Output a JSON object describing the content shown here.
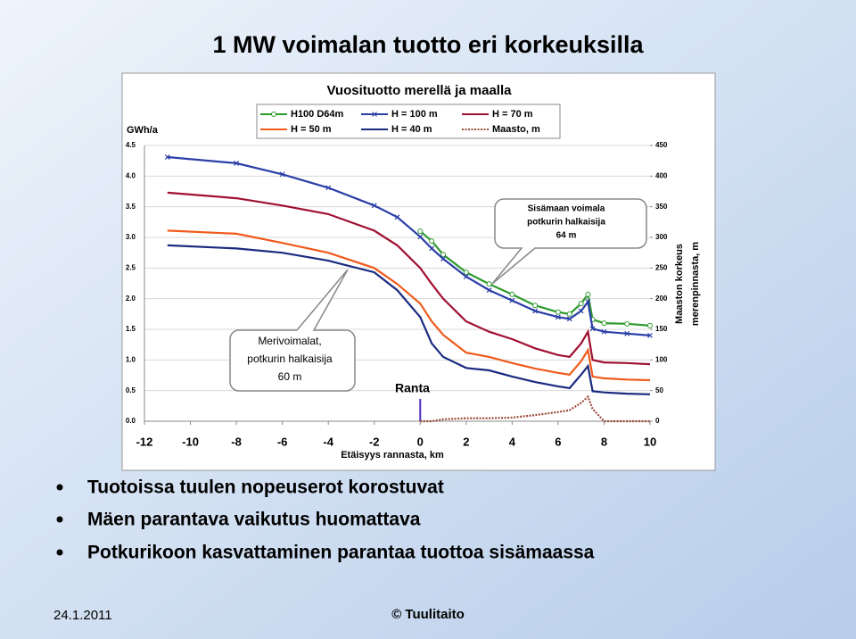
{
  "slide": {
    "title": "1 MW voimalan tuotto eri korkeuksilla",
    "bullets": [
      "Tuotoissa tuulen nopeuserot korostuvat",
      "Mäen parantava vaikutus huomattava",
      "Potkurikoon kasvattaminen parantaa tuottoa sisämaassa"
    ],
    "footer_date": "24.1.2011",
    "footer_copyright": "© Tuulitaito"
  },
  "chart_data": {
    "type": "line",
    "title": "Vuosituotto merellä ja maalla",
    "ylabel": "GWh/a",
    "xlabel": "Etäisyys rannasta, km",
    "y2label": [
      "Maaston korkeus",
      "merenpinnasta, m"
    ],
    "annotations": {
      "inland": [
        "Sisämaan voimala",
        "potkurin halkaisija",
        "64 m"
      ],
      "sea": [
        "Merivoimalat,",
        "potkurin halkaisija",
        "60 m"
      ],
      "shore": "Ranta"
    },
    "x": [
      -11,
      -8,
      -6,
      -4,
      -2,
      -1,
      0,
      0.5,
      1,
      2,
      3,
      4,
      5,
      6,
      6.5,
      7,
      7.3,
      7.5,
      8,
      9,
      10
    ],
    "xlim": [
      -12,
      10
    ],
    "xticks": [
      -12,
      -10,
      -8,
      -6,
      -4,
      -2,
      0,
      2,
      4,
      6,
      8,
      10
    ],
    "ylim": [
      0,
      4.5
    ],
    "yticks": [
      {
        "value": 0,
        "label": "0.0"
      },
      {
        "value": 0.5,
        "label": "0.5"
      },
      {
        "value": 1,
        "label": "1.0"
      },
      {
        "value": 1.5,
        "label": "1.5"
      },
      {
        "value": 2,
        "label": "2.0"
      },
      {
        "value": 2.5,
        "label": "2.5"
      },
      {
        "value": 3,
        "label": "3.0"
      },
      {
        "value": 3.5,
        "label": "3.5"
      },
      {
        "value": 4,
        "label": "4.0"
      },
      {
        "value": 4.5,
        "label": "4.5"
      }
    ],
    "y2lim": [
      0,
      450
    ],
    "y2ticks": [
      0,
      50,
      100,
      150,
      200,
      250,
      300,
      350,
      400,
      450
    ],
    "grid": true,
    "series": [
      {
        "name": "H100 D64m",
        "color": "#2e9a2e",
        "marker": "circle",
        "values": [
          null,
          null,
          null,
          null,
          null,
          null,
          3.1,
          2.94,
          2.72,
          2.43,
          2.24,
          2.07,
          1.89,
          1.78,
          1.75,
          1.92,
          2.07,
          1.66,
          1.6,
          1.59,
          1.56
        ]
      },
      {
        "name": "H = 100 m",
        "color": "#2b3fa8",
        "marker": "x",
        "values": [
          4.31,
          4.21,
          4.03,
          3.81,
          3.52,
          3.33,
          3.01,
          2.82,
          2.65,
          2.36,
          2.14,
          1.97,
          1.8,
          1.7,
          1.67,
          1.8,
          1.95,
          1.51,
          1.46,
          1.43,
          1.4
        ]
      },
      {
        "name": "H = 70 m",
        "color": "#a01030",
        "values": [
          3.73,
          3.64,
          3.52,
          3.38,
          3.11,
          2.87,
          2.5,
          2.24,
          2.0,
          1.63,
          1.46,
          1.34,
          1.19,
          1.08,
          1.05,
          1.27,
          1.46,
          1.0,
          0.96,
          0.95,
          0.93
        ]
      },
      {
        "name": "H = 50 m",
        "color": "#f05a1a",
        "values": [
          3.11,
          3.06,
          2.91,
          2.75,
          2.5,
          2.24,
          1.92,
          1.63,
          1.41,
          1.12,
          1.05,
          0.95,
          0.86,
          0.79,
          0.76,
          0.98,
          1.16,
          0.73,
          0.7,
          0.68,
          0.67
        ]
      },
      {
        "name": "H = 40 m",
        "color": "#1a2a80",
        "values": [
          2.87,
          2.82,
          2.75,
          2.62,
          2.43,
          2.14,
          1.7,
          1.27,
          1.05,
          0.87,
          0.83,
          0.73,
          0.64,
          0.57,
          0.54,
          0.76,
          0.9,
          0.49,
          0.47,
          0.45,
          0.44
        ]
      },
      {
        "name": "Maasto, m",
        "color": "#9a4a3a",
        "axis": "y2",
        "dash": true,
        "values": [
          null,
          null,
          null,
          null,
          null,
          null,
          0,
          0,
          3,
          5,
          5,
          6,
          10,
          15,
          18,
          30,
          40,
          20,
          0,
          0,
          0
        ]
      }
    ]
  }
}
